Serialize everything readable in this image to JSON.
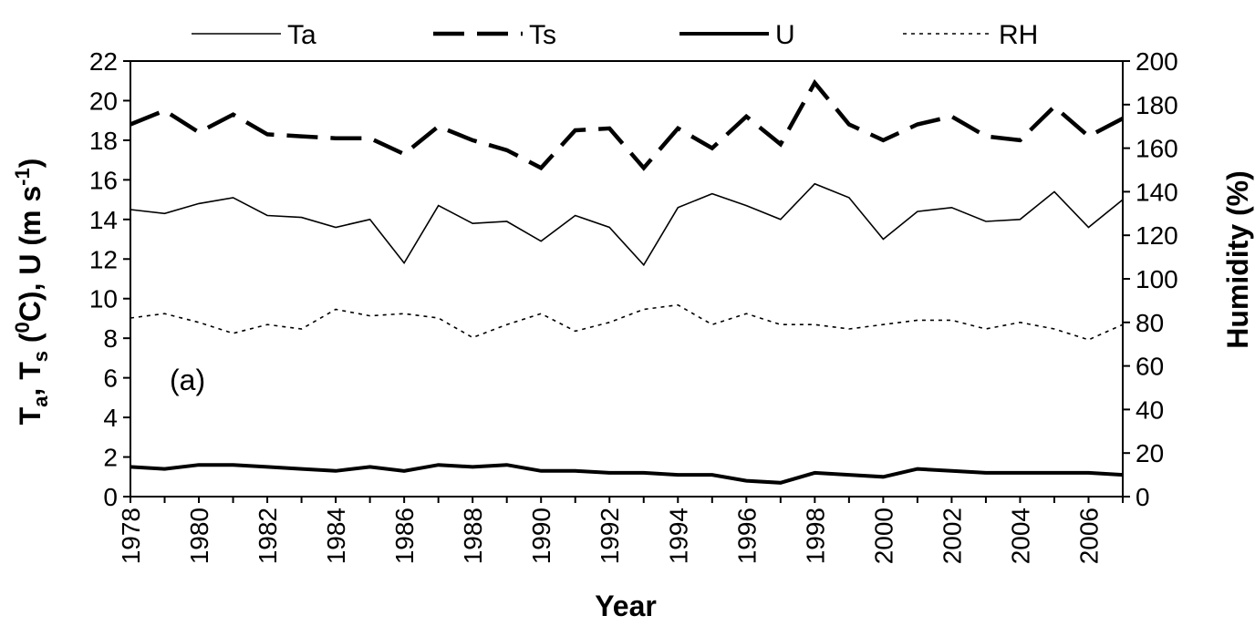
{
  "chart_data": {
    "type": "line",
    "panel_label": "(a)",
    "xlabel": "Year",
    "ylabel_left_parts": [
      "T",
      "a",
      ", T",
      "s",
      " (",
      "0",
      "C), U (m s",
      "-1",
      ")"
    ],
    "ylabel_right": "Humidity (%)",
    "xlim": [
      1978,
      2007
    ],
    "ylim_left": [
      0,
      22
    ],
    "ylim_right": [
      0,
      200
    ],
    "x_ticks": [
      "1978",
      "1980",
      "1982",
      "1984",
      "1986",
      "1988",
      "1990",
      "1992",
      "1994",
      "1996",
      "1998",
      "2000",
      "2002",
      "2004",
      "2006"
    ],
    "y_left_ticks": [
      "0",
      "2",
      "4",
      "6",
      "8",
      "10",
      "12",
      "14",
      "16",
      "18",
      "20",
      "22"
    ],
    "y_right_ticks": [
      "0",
      "20",
      "40",
      "60",
      "80",
      "100",
      "120",
      "140",
      "160",
      "180",
      "200"
    ],
    "legend_position": "top",
    "x": [
      1978,
      1979,
      1980,
      1981,
      1982,
      1983,
      1984,
      1985,
      1986,
      1987,
      1988,
      1989,
      1990,
      1991,
      1992,
      1993,
      1994,
      1995,
      1996,
      1997,
      1998,
      1999,
      2000,
      2001,
      2002,
      2003,
      2004,
      2005,
      2006,
      2007
    ],
    "series": [
      {
        "name": "Ta",
        "axis": "left",
        "style": "thin-solid",
        "values": [
          14.5,
          14.3,
          14.8,
          15.1,
          14.2,
          14.1,
          13.6,
          14.0,
          11.8,
          14.7,
          13.8,
          13.9,
          12.9,
          14.2,
          13.6,
          11.7,
          14.6,
          15.3,
          14.7,
          14.0,
          15.8,
          15.1,
          13.0,
          14.4,
          14.6,
          13.9,
          14.0,
          15.4,
          13.6,
          15.0
        ]
      },
      {
        "name": "Ts",
        "axis": "left",
        "style": "dashed",
        "values": [
          18.8,
          19.5,
          18.4,
          19.3,
          18.3,
          18.2,
          18.1,
          18.1,
          17.3,
          18.7,
          18.0,
          17.5,
          16.6,
          18.5,
          18.6,
          16.6,
          18.6,
          17.6,
          19.2,
          17.8,
          20.9,
          18.8,
          18.0,
          18.8,
          19.2,
          18.2,
          18.0,
          19.7,
          18.2,
          19.1
        ]
      },
      {
        "name": "U",
        "axis": "left",
        "style": "thick-solid",
        "values": [
          1.5,
          1.4,
          1.6,
          1.6,
          1.5,
          1.4,
          1.3,
          1.5,
          1.3,
          1.6,
          1.5,
          1.6,
          1.3,
          1.3,
          1.2,
          1.2,
          1.1,
          1.1,
          0.8,
          0.7,
          1.2,
          1.1,
          1.0,
          1.4,
          1.3,
          1.2,
          1.2,
          1.2,
          1.2,
          1.1
        ]
      },
      {
        "name": "RH",
        "axis": "right",
        "style": "dotted",
        "values": [
          82,
          84,
          80,
          75,
          79,
          77,
          86,
          83,
          84,
          82,
          73,
          79,
          84,
          76,
          80,
          86,
          88,
          79,
          84,
          79,
          79,
          77,
          79,
          81,
          81,
          77,
          80,
          77,
          72,
          79
        ]
      }
    ]
  }
}
